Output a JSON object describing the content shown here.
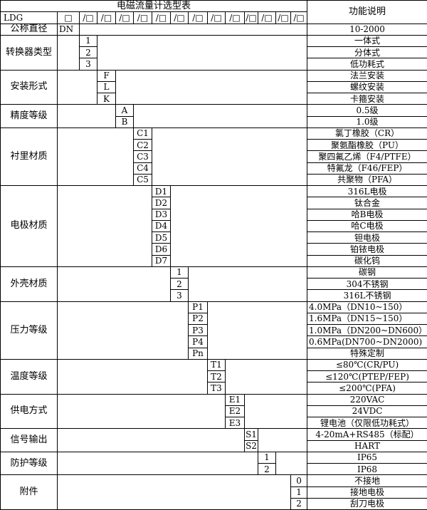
{
  "title": "电磁流量计选型表",
  "function_header": "功能说明",
  "model_row": {
    "prefix": "LDG",
    "first_box": "□",
    "boxes": [
      "/□",
      "/□",
      "/□",
      "/□",
      "/□",
      "/□",
      "/□",
      "/□",
      "/□",
      "/□",
      "/□",
      "/□",
      "/□"
    ]
  },
  "nominal_diameter": {
    "label": "公称直径",
    "code": "DN",
    "desc": "10-2000"
  },
  "sections": [
    {
      "label": "转换器类型",
      "col": 2,
      "items": [
        {
          "code": "1",
          "desc": "一体式"
        },
        {
          "code": "2",
          "desc": "分体式"
        },
        {
          "code": "3",
          "desc": "低功耗式"
        }
      ]
    },
    {
      "label": "安装形式",
      "col": 3,
      "items": [
        {
          "code": "F",
          "desc": "法兰安装"
        },
        {
          "code": "L",
          "desc": "螺纹安装"
        },
        {
          "code": "K",
          "desc": "卡箍安装"
        }
      ]
    },
    {
      "label": "精度等级",
      "col": 4,
      "items": [
        {
          "code": "A",
          "desc": "0.5级"
        },
        {
          "code": "B",
          "desc": "1.0级"
        }
      ]
    },
    {
      "label": "衬里材质",
      "col": 5,
      "items": [
        {
          "code": "C1",
          "desc": "氯丁橡胶（CR）"
        },
        {
          "code": "C2",
          "desc": "聚氨酯橡胶（PU）"
        },
        {
          "code": "C3",
          "desc": "聚四氟乙烯（F4/PTFE）"
        },
        {
          "code": "C4",
          "desc": "特氟龙（F46/FEP）"
        },
        {
          "code": "C5",
          "desc": "共聚物（PFA）"
        }
      ]
    },
    {
      "label": "电极材质",
      "col": 6,
      "items": [
        {
          "code": "D1",
          "desc": "316L电极"
        },
        {
          "code": "D2",
          "desc": "钛合金"
        },
        {
          "code": "D3",
          "desc": "哈B电极"
        },
        {
          "code": "D4",
          "desc": "哈C电极"
        },
        {
          "code": "D5",
          "desc": "钽电极"
        },
        {
          "code": "D6",
          "desc": "铂铱电极"
        },
        {
          "code": "D7",
          "desc": "碳化钨"
        }
      ]
    },
    {
      "label": "外壳材质",
      "col": 7,
      "items": [
        {
          "code": "1",
          "desc": "碳钢"
        },
        {
          "code": "2",
          "desc": "304不锈钢"
        },
        {
          "code": "3",
          "desc": "316L不锈钢"
        }
      ]
    },
    {
      "label": "压力等级",
      "col": 8,
      "items": [
        {
          "code": "P1",
          "desc": "4.0MPa（DN10~150）",
          "align": "left"
        },
        {
          "code": "P2",
          "desc": "1.6MPa（DN15~150）",
          "align": "left"
        },
        {
          "code": "P3",
          "desc": "1.0MPa（DN200~DN600）",
          "align": "left"
        },
        {
          "code": "P4",
          "desc": "0.6MPa(DN700~DN2000)",
          "align": "left"
        },
        {
          "code": "Pn",
          "desc": "特殊定制"
        }
      ]
    },
    {
      "label": "温度等级",
      "col": 9,
      "items": [
        {
          "code": "T1",
          "desc": "≤80℃(CR/PU)"
        },
        {
          "code": "T2",
          "desc": "≤120℃(PTEP/FEP)"
        },
        {
          "code": "T3",
          "desc": "≤200℃(PFA)"
        }
      ]
    },
    {
      "label": "供电方式",
      "col": 10,
      "items": [
        {
          "code": "E1",
          "desc": "220VAC"
        },
        {
          "code": "E2",
          "desc": "24VDC"
        },
        {
          "code": "E3",
          "desc": "锂电池（仅限低功耗式）"
        }
      ]
    },
    {
      "label": "信号输出",
      "col": 11,
      "items": [
        {
          "code": "S1",
          "desc": "4-20mA+RS485（标配）"
        },
        {
          "code": "S2",
          "desc": "HART"
        }
      ]
    },
    {
      "label": "防护等级",
      "col": 12,
      "items": [
        {
          "code": "1",
          "desc": "IP65"
        },
        {
          "code": "2",
          "desc": "IP68"
        }
      ]
    },
    {
      "label": "附件",
      "col": 14,
      "items": [
        {
          "code": "0",
          "desc": "不接地"
        },
        {
          "code": "1",
          "desc": "接地电极"
        },
        {
          "code": "2",
          "desc": "刮刀电极"
        }
      ]
    }
  ]
}
